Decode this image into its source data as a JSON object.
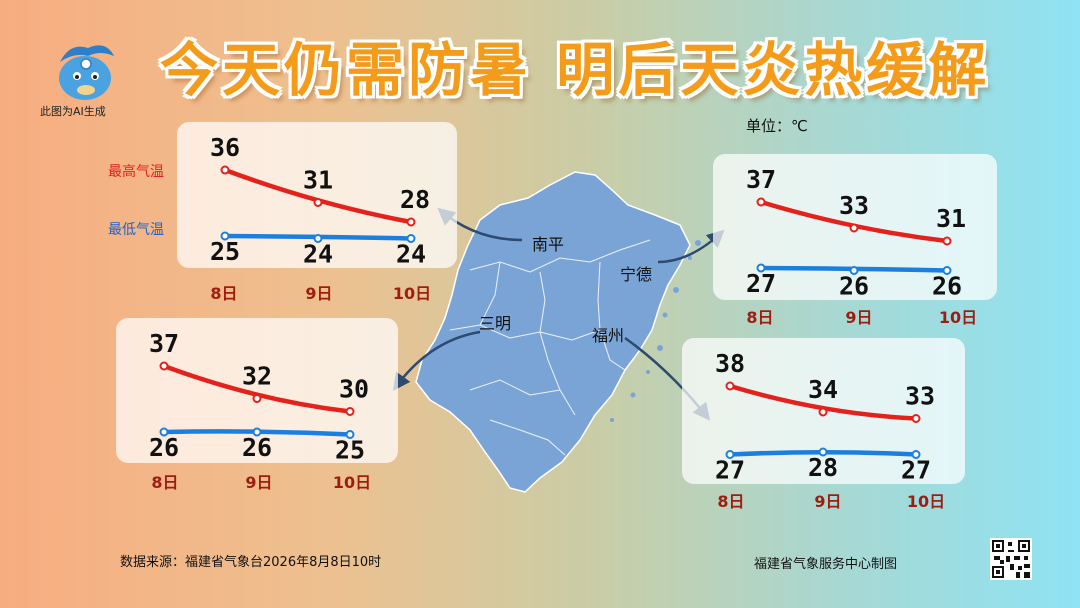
{
  "title": "今天仍需防暑  明后天炎热缓解",
  "ai_note": "此图为AI生成",
  "unit": "单位：℃",
  "legend": {
    "high": "最高气温",
    "low": "最低气温"
  },
  "footer": {
    "source": "数据来源：福建省气象台2026年8月8日10时",
    "maker": "福建省气象服务中心制图"
  },
  "colors": {
    "high": "#e4211b",
    "low": "#1a7fe0",
    "map": "#7ba4d6",
    "title": "#f49b1a",
    "day_label": "#9e1d10"
  },
  "icons": {
    "mascot": "mascot-icon",
    "qr": "qr-code-icon"
  },
  "chart_data": [
    {
      "type": "line",
      "city": "南平",
      "categories": [
        "8日",
        "9日",
        "10日"
      ],
      "series": [
        {
          "name": "最高气温",
          "values": [
            36,
            31,
            28
          ]
        },
        {
          "name": "最低气温",
          "values": [
            25,
            24,
            24
          ]
        }
      ]
    },
    {
      "type": "line",
      "city": "宁德",
      "categories": [
        "8日",
        "9日",
        "10日"
      ],
      "series": [
        {
          "name": "最高气温",
          "values": [
            37,
            33,
            31
          ]
        },
        {
          "name": "最低气温",
          "values": [
            27,
            26,
            26
          ]
        }
      ]
    },
    {
      "type": "line",
      "city": "三明",
      "categories": [
        "8日",
        "9日",
        "10日"
      ],
      "series": [
        {
          "name": "最高气温",
          "values": [
            37,
            32,
            30
          ]
        },
        {
          "name": "最低气温",
          "values": [
            26,
            26,
            25
          ]
        }
      ]
    },
    {
      "type": "line",
      "city": "福州",
      "categories": [
        "8日",
        "9日",
        "10日"
      ],
      "series": [
        {
          "name": "最高气温",
          "values": [
            38,
            34,
            33
          ]
        },
        {
          "name": "最低气温",
          "values": [
            27,
            28,
            27
          ]
        }
      ]
    }
  ]
}
